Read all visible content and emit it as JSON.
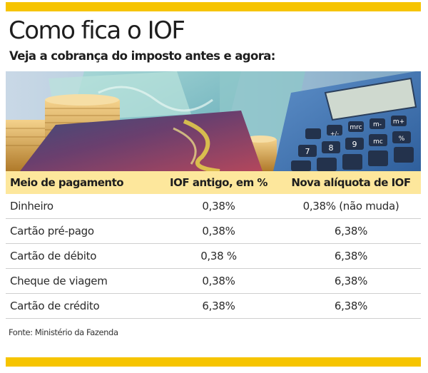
{
  "colors": {
    "accent": "#f6c400",
    "header_bg": "#fde79c"
  },
  "header": {
    "title": "Como fica o IOF",
    "subtitle": "Veja a cobrança do imposto antes e agora:"
  },
  "illustration": {
    "icons": [
      "coins-icon",
      "banknotes-icon",
      "card-icon",
      "calculator-icon"
    ],
    "calculator_keys": [
      "7",
      "8",
      "9",
      "mc",
      "m-",
      "m+",
      "mrc",
      "%",
      "+/-"
    ]
  },
  "table": {
    "columns": [
      "Meio de pagamento",
      "IOF antigo, em %",
      "Nova alíquota de IOF"
    ],
    "rows": [
      [
        "Dinheiro",
        "0,38%",
        "0,38% (não muda)"
      ],
      [
        "Cartão pré-pago",
        "0,38%",
        "6,38%"
      ],
      [
        "Cartão de débito",
        "0,38 %",
        "6,38%"
      ],
      [
        "Cheque de viagem",
        "0,38%",
        "6,38%"
      ],
      [
        "Cartão de crédito",
        "6,38%",
        "6,38%"
      ]
    ]
  },
  "footer": {
    "source": "Fonte: Ministério da Fazenda"
  }
}
